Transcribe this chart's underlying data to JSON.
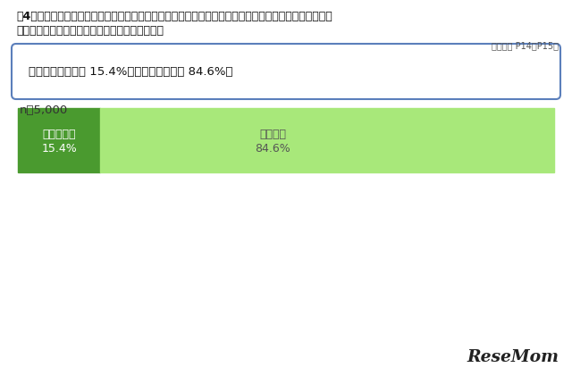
{
  "title_line1": "問4　あなたは、東京都で「東京都オリンピック憲章にうたわれる人権尊重の理念の実現を目指す条例」",
  "title_line2": "　　　が制定されていることを知っていますか。",
  "report_ref": "（報告書 P14～P15）",
  "summary_text": "「知っている」は 15.4%、「知らない」は 84.6%。",
  "n_label": "n＝5,000",
  "bar_labels": [
    "知っている",
    "知らない"
  ],
  "bar_values": [
    15.4,
    84.6
  ],
  "bar_pct_labels": [
    "15.4%",
    "84.6%"
  ],
  "bar_colors": [
    "#4a9a2f",
    "#a8e87a"
  ],
  "bar_text_colors": [
    "#ffffff",
    "#555555"
  ],
  "background_color": "#ffffff",
  "box_border_color": "#5b7fbb",
  "resemom_text": "ReseMom",
  "figsize": [
    6.4,
    4.21
  ],
  "dpi": 100
}
